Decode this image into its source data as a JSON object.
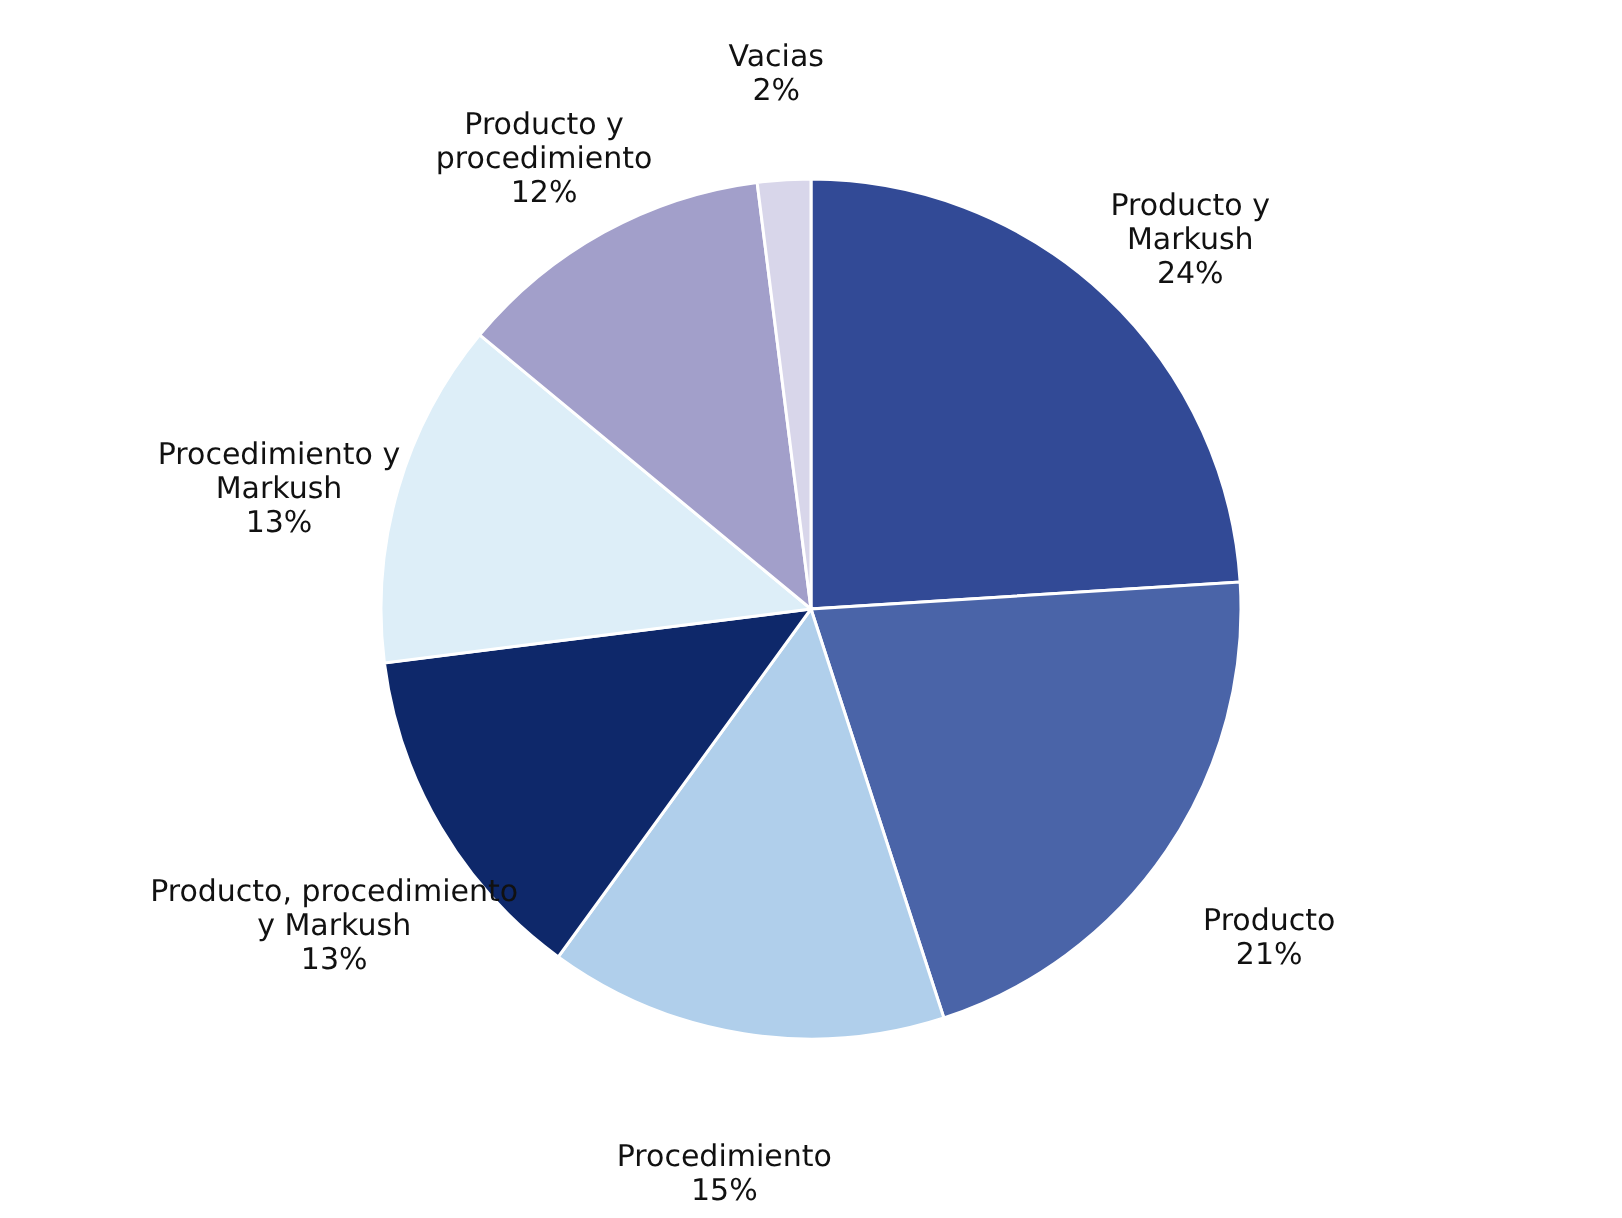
{
  "chart_data": {
    "type": "pie",
    "categories": [
      "Producto y\nMarkush",
      "Producto",
      "Procedimiento",
      "Producto, procedimiento\ny Markush",
      "Procedimiento  y\nMarkush",
      "Producto y\nprocedimiento",
      "Vacias"
    ],
    "values": [
      24,
      21,
      15,
      13,
      13,
      12,
      2
    ],
    "value_labels": [
      "24%",
      "21%",
      "15%",
      "13%",
      "13%",
      "12%",
      "2%"
    ],
    "colors": [
      "#324a96",
      "#4a64a8",
      "#b0cfeb",
      "#0e286a",
      "#ddeef8",
      "#a29fca",
      "#d8d6ea"
    ]
  }
}
